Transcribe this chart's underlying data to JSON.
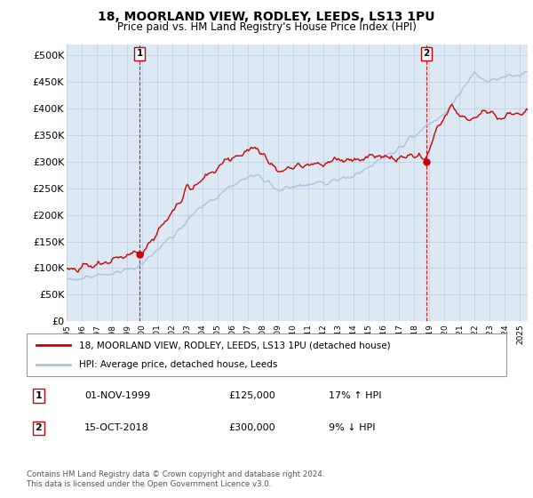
{
  "title": "18, MOORLAND VIEW, RODLEY, LEEDS, LS13 1PU",
  "subtitle": "Price paid vs. HM Land Registry's House Price Index (HPI)",
  "ylabel_ticks": [
    "£0",
    "£50K",
    "£100K",
    "£150K",
    "£200K",
    "£250K",
    "£300K",
    "£350K",
    "£400K",
    "£450K",
    "£500K"
  ],
  "ytick_values": [
    0,
    50000,
    100000,
    150000,
    200000,
    250000,
    300000,
    350000,
    400000,
    450000,
    500000
  ],
  "ylim": [
    0,
    520000
  ],
  "xlim_start": 1995.0,
  "xlim_end": 2025.5,
  "sale1": {
    "date": 1999.83,
    "price": 125000,
    "label": "1",
    "hpi_pct": "17% ↑ HPI",
    "date_str": "01-NOV-1999"
  },
  "sale2": {
    "date": 2018.79,
    "price": 300000,
    "label": "2",
    "hpi_pct": "9% ↓ HPI",
    "date_str": "15-OCT-2018"
  },
  "legend_line1": "18, MOORLAND VIEW, RODLEY, LEEDS, LS13 1PU (detached house)",
  "legend_line2": "HPI: Average price, detached house, Leeds",
  "footnote": "Contains HM Land Registry data © Crown copyright and database right 2024.\nThis data is licensed under the Open Government Licence v3.0.",
  "hpi_color": "#a8c4e0",
  "price_color": "#cc0000",
  "marker_color": "#cc0000",
  "dashed_color": "#cc0000",
  "background_color": "#ffffff",
  "chart_bg_color": "#dce9f5",
  "grid_color": "#c0d0e0"
}
